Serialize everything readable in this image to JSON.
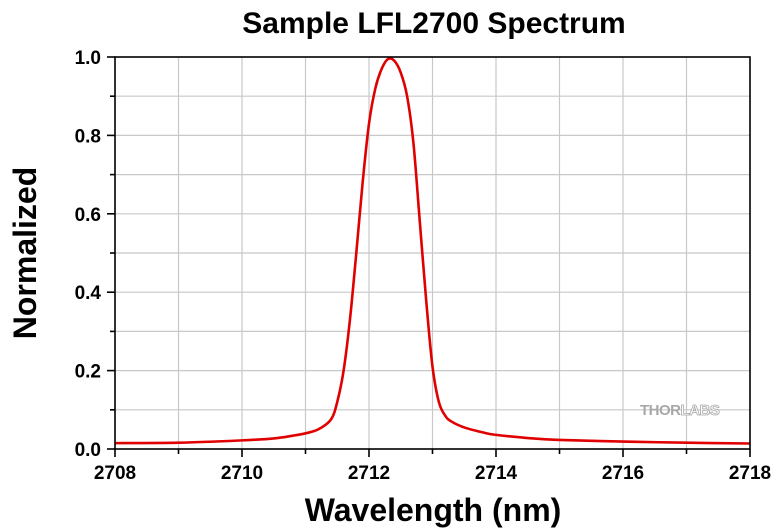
{
  "chart_data": {
    "type": "line",
    "title": "Sample LFL2700 Spectrum",
    "xlabel": "Wavelength (nm)",
    "ylabel": "Normalized",
    "xlim": [
      2708,
      2718
    ],
    "ylim": [
      0.0,
      1.0
    ],
    "xticks": [
      2708,
      2710,
      2712,
      2714,
      2716,
      2718
    ],
    "xtick_labels": [
      "2708",
      "2710",
      "2712",
      "2714",
      "2716",
      "2718"
    ],
    "yticks": [
      0.0,
      0.2,
      0.4,
      0.6,
      0.8,
      1.0
    ],
    "ytick_labels": [
      "0.0",
      "0.2",
      "0.4",
      "0.6",
      "0.8",
      "1.0"
    ],
    "grid": true,
    "series": [
      {
        "color": "#e00000",
        "x": [
          2708.0,
          2709.0,
          2710.0,
          2710.5,
          2710.8,
          2711.0,
          2711.2,
          2711.4,
          2711.5,
          2711.6,
          2711.7,
          2711.8,
          2711.9,
          2712.0,
          2712.1,
          2712.2,
          2712.3,
          2712.4,
          2712.5,
          2712.6,
          2712.7,
          2712.8,
          2712.9,
          2713.0,
          2713.1,
          2713.2,
          2713.3,
          2713.5,
          2713.8,
          2714.0,
          2714.5,
          2715.0,
          2716.0,
          2717.0,
          2718.0
        ],
        "y": [
          0.015,
          0.016,
          0.022,
          0.027,
          0.034,
          0.04,
          0.05,
          0.075,
          0.12,
          0.2,
          0.33,
          0.5,
          0.68,
          0.83,
          0.92,
          0.97,
          0.995,
          0.99,
          0.96,
          0.9,
          0.78,
          0.58,
          0.38,
          0.21,
          0.12,
          0.085,
          0.07,
          0.055,
          0.042,
          0.036,
          0.028,
          0.023,
          0.019,
          0.016,
          0.014
        ]
      }
    ],
    "watermark": {
      "text_part1": "THOR",
      "text_part2": "LABS"
    }
  }
}
